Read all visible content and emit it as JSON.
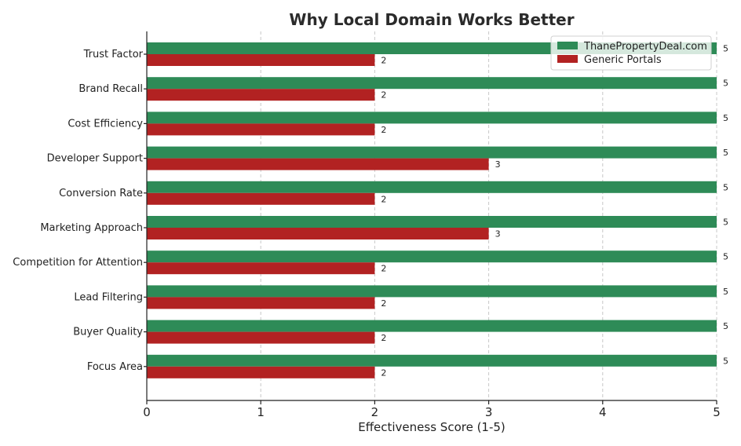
{
  "chart_data": {
    "type": "bar",
    "orientation": "horizontal",
    "title": "Why Local Domain Works Better",
    "xlabel": "Effectiveness Score (1-5)",
    "ylabel": "",
    "xlim": [
      0,
      5
    ],
    "xticks": [
      0,
      1,
      2,
      3,
      4,
      5
    ],
    "grid": "vertical dashed",
    "legend_position": "top-right",
    "categories": [
      "Trust Factor",
      "Brand Recall",
      "Cost Efficiency",
      "Developer Support",
      "Conversion Rate",
      "Marketing Approach",
      "Competition for Attention",
      "Lead Filtering",
      "Buyer Quality",
      "Focus Area"
    ],
    "series": [
      {
        "name": "ThanePropertyDeal.com",
        "color": "#2e8b57",
        "values": [
          5,
          5,
          5,
          5,
          5,
          5,
          5,
          5,
          5,
          5
        ]
      },
      {
        "name": "Generic Portals",
        "color": "#b22222",
        "values": [
          2,
          2,
          2,
          3,
          2,
          3,
          2,
          2,
          2,
          2
        ]
      }
    ]
  }
}
